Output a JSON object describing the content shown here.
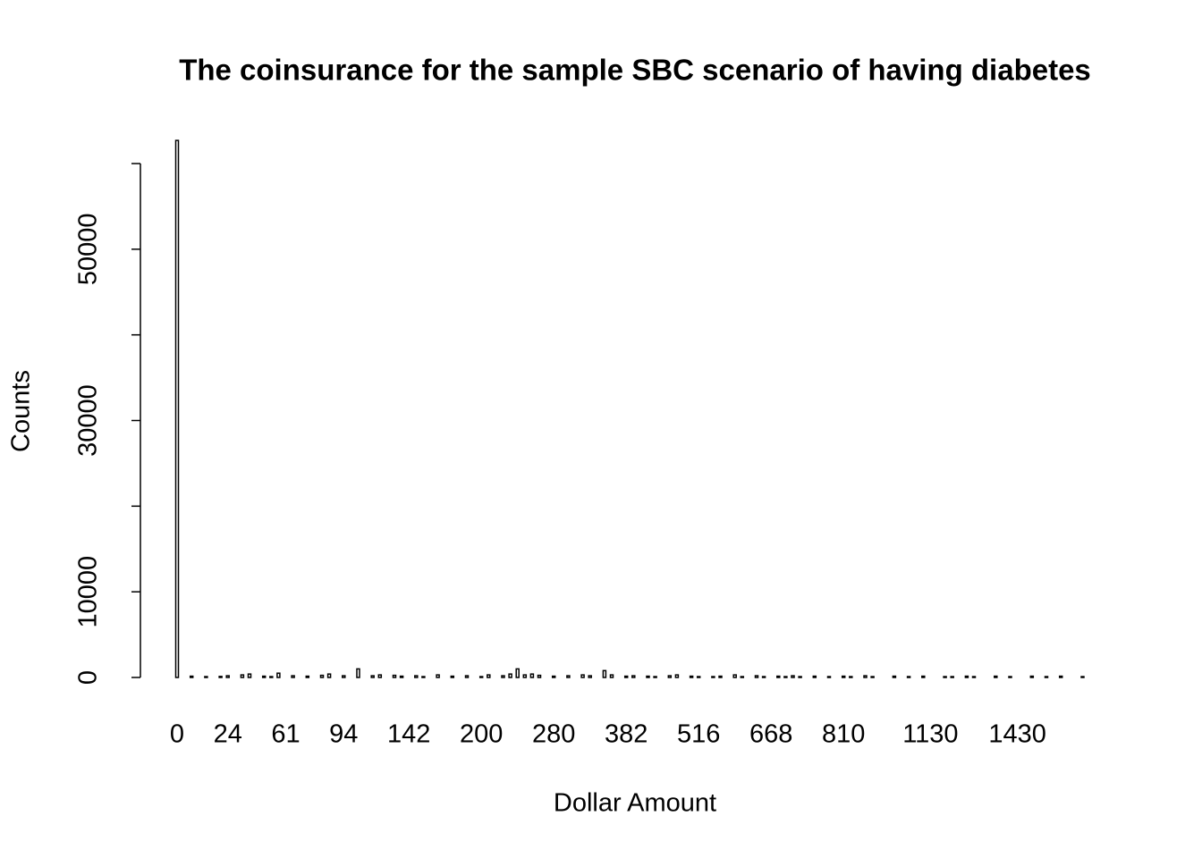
{
  "chart_data": {
    "type": "bar",
    "title": "The coinsurance for the sample SBC scenario of having diabetes",
    "x_label": "Dollar Amount",
    "y_label": "Counts",
    "categories": [
      "0",
      null,
      null,
      null,
      null,
      null,
      null,
      "24",
      null,
      null,
      null,
      null,
      null,
      null,
      null,
      "61",
      null,
      null,
      null,
      null,
      null,
      null,
      null,
      "94",
      null,
      null,
      null,
      null,
      null,
      null,
      null,
      null,
      "142",
      null,
      null,
      null,
      null,
      null,
      null,
      null,
      null,
      null,
      "200",
      null,
      null,
      null,
      null,
      null,
      null,
      null,
      null,
      null,
      "280",
      null,
      null,
      null,
      null,
      null,
      null,
      null,
      null,
      null,
      "382",
      null,
      null,
      null,
      null,
      null,
      null,
      null,
      null,
      null,
      "516",
      null,
      null,
      null,
      null,
      null,
      null,
      null,
      null,
      null,
      "668",
      null,
      null,
      null,
      null,
      null,
      null,
      null,
      null,
      null,
      "810",
      null,
      null,
      null,
      null,
      null,
      null,
      null,
      null,
      null,
      null,
      null,
      "1130",
      null,
      null,
      null,
      null,
      null,
      null,
      null,
      null,
      null,
      null,
      null,
      "1430",
      null,
      null,
      null,
      null,
      null,
      null,
      null,
      null,
      null
    ],
    "values": [
      62700,
      0,
      150,
      0,
      100,
      0,
      120,
      200,
      0,
      300,
      400,
      0,
      150,
      100,
      500,
      0,
      200,
      0,
      150,
      0,
      250,
      400,
      0,
      200,
      0,
      1000,
      0,
      200,
      300,
      0,
      250,
      150,
      0,
      200,
      100,
      0,
      300,
      0,
      150,
      0,
      200,
      0,
      100,
      300,
      0,
      200,
      400,
      1000,
      300,
      400,
      250,
      0,
      150,
      0,
      200,
      0,
      300,
      200,
      0,
      800,
      300,
      0,
      150,
      200,
      0,
      150,
      100,
      0,
      200,
      300,
      0,
      150,
      100,
      0,
      100,
      150,
      0,
      300,
      100,
      0,
      200,
      100,
      0,
      150,
      100,
      200,
      100,
      0,
      150,
      0,
      100,
      0,
      150,
      100,
      0,
      200,
      100,
      0,
      0,
      150,
      0,
      100,
      0,
      150,
      0,
      0,
      100,
      100,
      0,
      150,
      100,
      0,
      0,
      150,
      0,
      100,
      0,
      0,
      150,
      0,
      100,
      0,
      150,
      0,
      0,
      100
    ],
    "color": "#ffffff",
    "edge_color": "#000000",
    "ylim": [
      0,
      60000
    ],
    "yticks": [
      0,
      10000,
      {
        "value": 20000,
        "label": null
      },
      30000,
      {
        "value": 40000,
        "label": null
      },
      50000,
      {
        "value": 60000,
        "label": null
      }
    ]
  }
}
